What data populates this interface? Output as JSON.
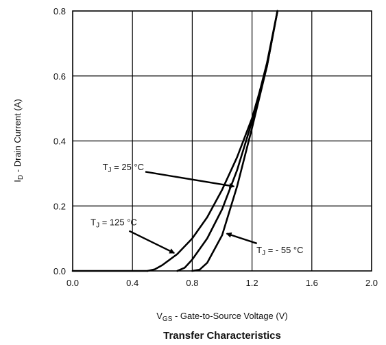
{
  "chart_data": {
    "type": "line",
    "caption": "Transfer Characteristics",
    "xlabel": {
      "main": "V",
      "sub": "GS",
      "rest": " - Gate-to-Source Voltage (V)"
    },
    "ylabel": {
      "main": "I",
      "sub": "D",
      "rest": " - Drain Current (A)"
    },
    "xlim": [
      0,
      2
    ],
    "ylim": [
      0,
      0.8
    ],
    "x_ticks": [
      0.0,
      0.4,
      0.8,
      1.2,
      1.6,
      2.0
    ],
    "x_tick_labels": [
      "0.0",
      "0.4",
      "0.8",
      "1.2",
      "1.6",
      "2.0"
    ],
    "y_ticks": [
      0.0,
      0.2,
      0.4,
      0.6,
      0.8
    ],
    "y_tick_labels": [
      "0.0",
      "0.2",
      "0.4",
      "0.6",
      "0.8"
    ],
    "grid": true,
    "series": [
      {
        "name": "125",
        "points": [
          [
            0.5,
            0.0
          ],
          [
            0.55,
            0.005
          ],
          [
            0.6,
            0.018
          ],
          [
            0.7,
            0.052
          ],
          [
            0.8,
            0.1
          ],
          [
            0.9,
            0.165
          ],
          [
            1.0,
            0.25
          ],
          [
            1.1,
            0.35
          ],
          [
            1.2,
            0.47
          ],
          [
            1.3,
            0.63
          ],
          [
            1.37,
            0.8
          ]
        ]
      },
      {
        "name": "25",
        "points": [
          [
            0.7,
            0.0
          ],
          [
            0.75,
            0.01
          ],
          [
            0.8,
            0.035
          ],
          [
            0.9,
            0.1
          ],
          [
            1.0,
            0.19
          ],
          [
            1.1,
            0.31
          ],
          [
            1.2,
            0.46
          ],
          [
            1.3,
            0.64
          ],
          [
            1.37,
            0.8
          ]
        ]
      },
      {
        "name": "-55",
        "points": [
          [
            0.8,
            0.0
          ],
          [
            0.85,
            0.004
          ],
          [
            0.9,
            0.025
          ],
          [
            1.0,
            0.11
          ],
          [
            1.1,
            0.26
          ],
          [
            1.2,
            0.44
          ],
          [
            1.3,
            0.63
          ],
          [
            1.37,
            0.8
          ]
        ]
      }
    ],
    "annotations": [
      {
        "main": "T",
        "sub": "J",
        "rest": " = 25 °C",
        "x": 0.2,
        "y": 0.31,
        "arrow_to": [
          1.08,
          0.26
        ]
      },
      {
        "main": "T",
        "sub": "J",
        "rest": " = 125 °C",
        "x": 0.12,
        "y": 0.14,
        "arrow_to": [
          0.68,
          0.055
        ]
      },
      {
        "main": "T",
        "sub": "J",
        "rest": " = - 55 °C",
        "x": 1.23,
        "y": 0.055,
        "arrow_to": [
          1.03,
          0.115
        ]
      }
    ]
  }
}
